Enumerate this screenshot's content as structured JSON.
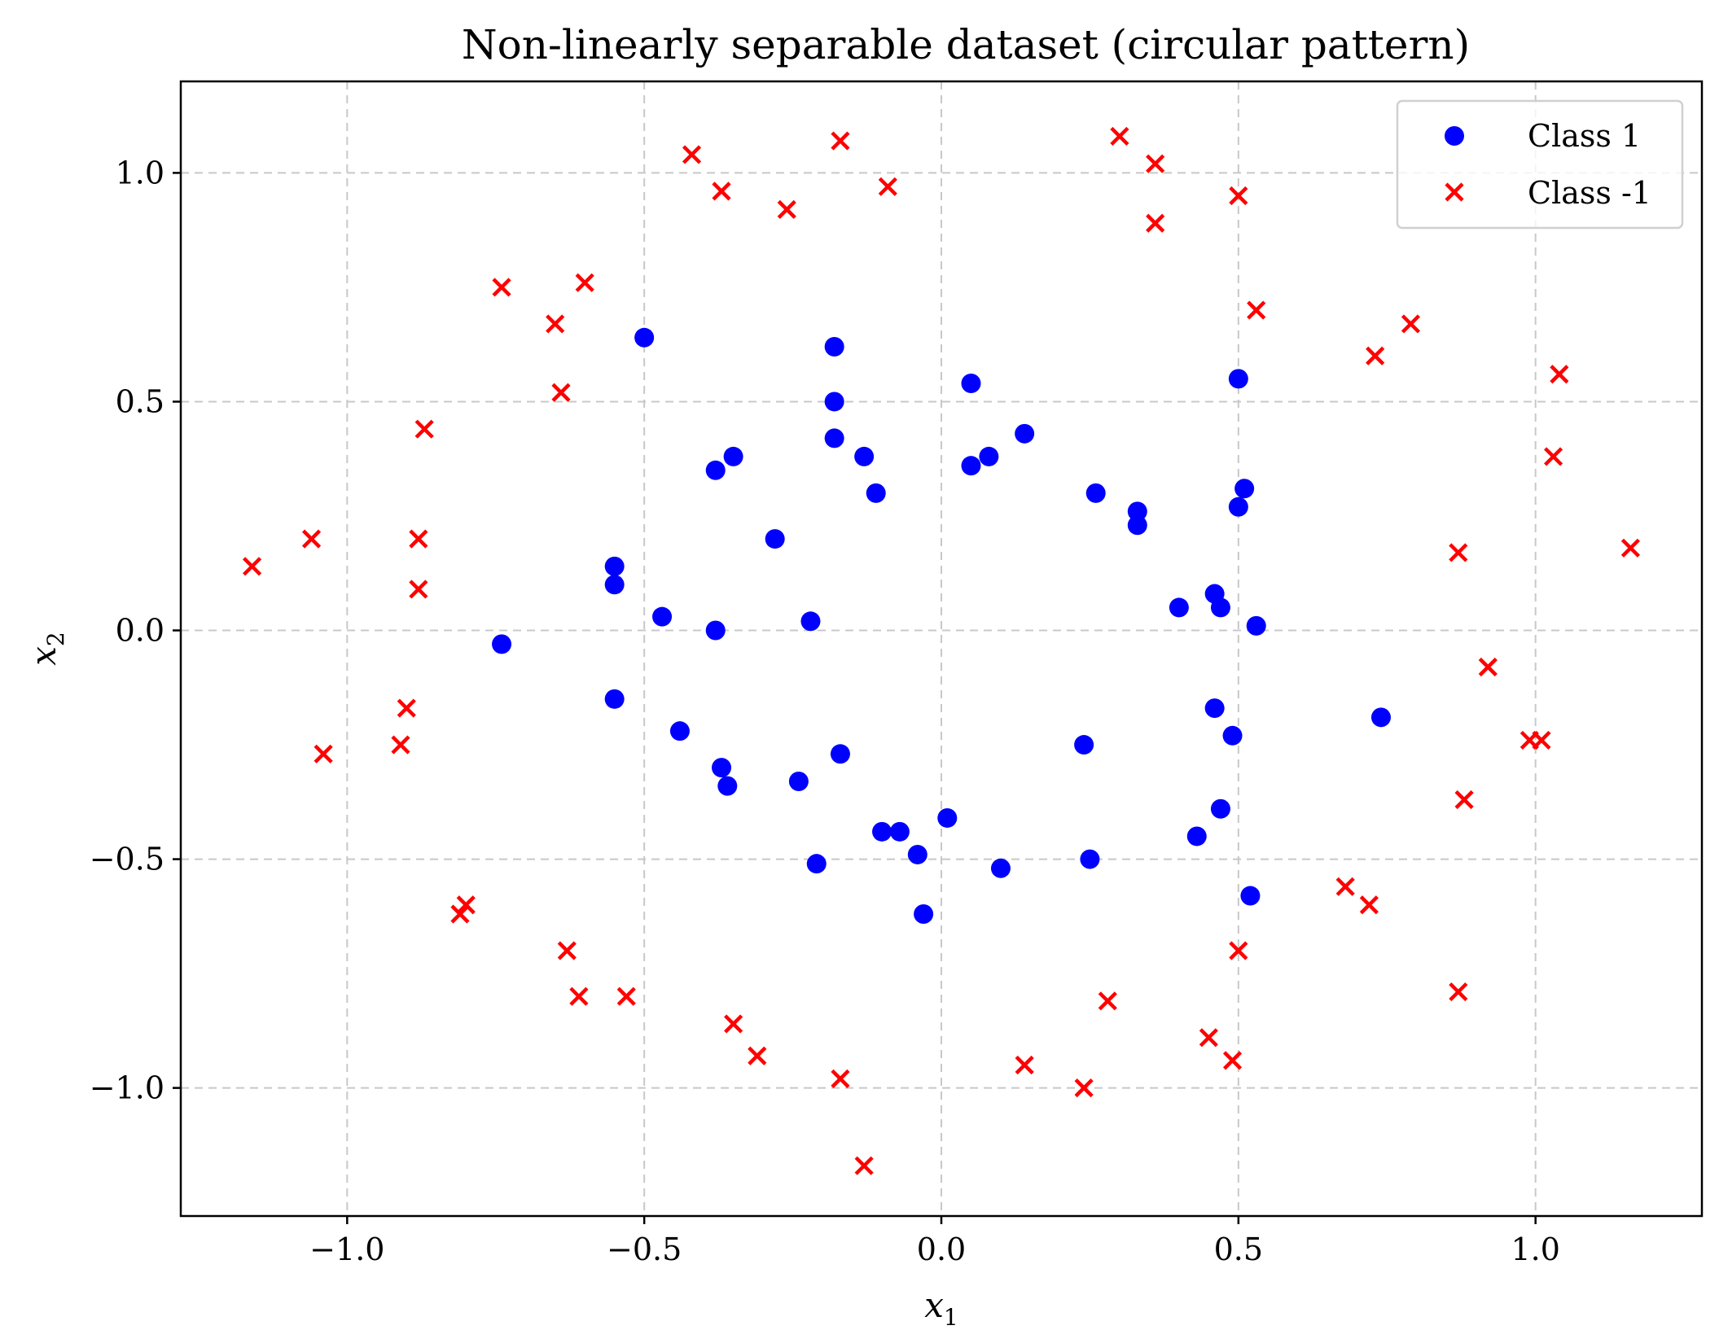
{
  "chart_data": {
    "type": "scatter",
    "title": "Non-linearly separable dataset (circular pattern)",
    "xlabel": "x",
    "xlabel_sub": "1",
    "ylabel": "x",
    "ylabel_sub": "2",
    "xlim": [
      -1.28,
      1.28
    ],
    "ylim": [
      -1.28,
      1.2
    ],
    "x_ticks": [
      {
        "value": -1.0,
        "label": "−1.0"
      },
      {
        "value": -0.5,
        "label": "−0.5"
      },
      {
        "value": 0.0,
        "label": "0.0"
      },
      {
        "value": 0.5,
        "label": "0.5"
      },
      {
        "value": 1.0,
        "label": "1.0"
      }
    ],
    "y_ticks": [
      {
        "value": -1.0,
        "label": "−1.0"
      },
      {
        "value": -0.5,
        "label": "−0.5"
      },
      {
        "value": 0.0,
        "label": "0.0"
      },
      {
        "value": 0.5,
        "label": "0.5"
      },
      {
        "value": 1.0,
        "label": "1.0"
      }
    ],
    "grid": true,
    "legend_position": "top-right",
    "series": [
      {
        "name": "Class 1",
        "marker": "circle",
        "color": "#0000ff",
        "points": [
          [
            -0.5,
            0.64
          ],
          [
            -0.18,
            0.62
          ],
          [
            0.05,
            0.54
          ],
          [
            0.5,
            0.55
          ],
          [
            -0.18,
            0.5
          ],
          [
            -0.18,
            0.42
          ],
          [
            -0.13,
            0.38
          ],
          [
            -0.35,
            0.38
          ],
          [
            -0.38,
            0.35
          ],
          [
            0.05,
            0.36
          ],
          [
            0.08,
            0.38
          ],
          [
            0.14,
            0.43
          ],
          [
            -0.11,
            0.3
          ],
          [
            0.26,
            0.3
          ],
          [
            0.33,
            0.26
          ],
          [
            0.33,
            0.23
          ],
          [
            0.51,
            0.31
          ],
          [
            0.5,
            0.27
          ],
          [
            -0.28,
            0.2
          ],
          [
            -0.55,
            0.14
          ],
          [
            -0.55,
            0.1
          ],
          [
            0.4,
            0.05
          ],
          [
            0.46,
            0.08
          ],
          [
            0.47,
            0.05
          ],
          [
            -0.47,
            0.03
          ],
          [
            -0.22,
            0.02
          ],
          [
            -0.38,
            0.0
          ],
          [
            0.53,
            0.01
          ],
          [
            -0.74,
            -0.03
          ],
          [
            -0.55,
            -0.15
          ],
          [
            0.46,
            -0.17
          ],
          [
            0.49,
            -0.23
          ],
          [
            0.74,
            -0.19
          ],
          [
            -0.44,
            -0.22
          ],
          [
            0.24,
            -0.25
          ],
          [
            -0.37,
            -0.3
          ],
          [
            -0.17,
            -0.27
          ],
          [
            -0.36,
            -0.34
          ],
          [
            -0.24,
            -0.33
          ],
          [
            0.47,
            -0.39
          ],
          [
            -0.1,
            -0.44
          ],
          [
            -0.07,
            -0.44
          ],
          [
            0.01,
            -0.41
          ],
          [
            0.43,
            -0.45
          ],
          [
            -0.04,
            -0.49
          ],
          [
            -0.21,
            -0.51
          ],
          [
            0.1,
            -0.52
          ],
          [
            0.25,
            -0.5
          ],
          [
            0.52,
            -0.58
          ],
          [
            -0.03,
            -0.62
          ]
        ]
      },
      {
        "name": "Class -1",
        "marker": "x",
        "color": "#ff0000",
        "points": [
          [
            -0.42,
            1.04
          ],
          [
            -0.17,
            1.07
          ],
          [
            0.3,
            1.08
          ],
          [
            0.36,
            1.02
          ],
          [
            -0.37,
            0.96
          ],
          [
            -0.26,
            0.92
          ],
          [
            -0.09,
            0.97
          ],
          [
            0.5,
            0.95
          ],
          [
            0.36,
            0.89
          ],
          [
            -0.74,
            0.75
          ],
          [
            -0.6,
            0.76
          ],
          [
            -0.65,
            0.67
          ],
          [
            0.53,
            0.7
          ],
          [
            0.79,
            0.67
          ],
          [
            0.73,
            0.6
          ],
          [
            1.04,
            0.56
          ],
          [
            -0.64,
            0.52
          ],
          [
            -0.87,
            0.44
          ],
          [
            1.03,
            0.38
          ],
          [
            -1.06,
            0.2
          ],
          [
            -0.88,
            0.2
          ],
          [
            -1.16,
            0.14
          ],
          [
            0.87,
            0.17
          ],
          [
            1.16,
            0.18
          ],
          [
            -0.88,
            0.09
          ],
          [
            0.92,
            -0.08
          ],
          [
            -0.9,
            -0.17
          ],
          [
            -0.91,
            -0.25
          ],
          [
            -1.04,
            -0.27
          ],
          [
            0.99,
            -0.24
          ],
          [
            1.01,
            -0.24
          ],
          [
            0.88,
            -0.37
          ],
          [
            -0.8,
            -0.6
          ],
          [
            -0.81,
            -0.62
          ],
          [
            0.68,
            -0.56
          ],
          [
            0.72,
            -0.6
          ],
          [
            -0.63,
            -0.7
          ],
          [
            0.5,
            -0.7
          ],
          [
            -0.61,
            -0.8
          ],
          [
            -0.53,
            -0.8
          ],
          [
            0.28,
            -0.81
          ],
          [
            0.87,
            -0.79
          ],
          [
            -0.35,
            -0.86
          ],
          [
            -0.31,
            -0.93
          ],
          [
            0.45,
            -0.89
          ],
          [
            0.49,
            -0.94
          ],
          [
            0.14,
            -0.95
          ],
          [
            -0.17,
            -0.98
          ],
          [
            0.24,
            -1.0
          ],
          [
            -0.13,
            -1.17
          ]
        ]
      }
    ]
  }
}
